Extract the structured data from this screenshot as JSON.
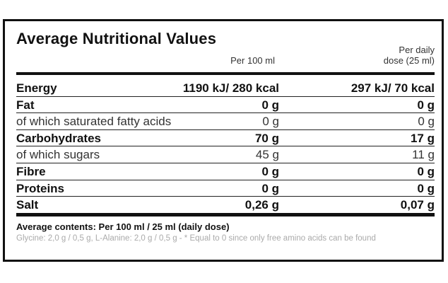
{
  "title": "Average Nutritional Values",
  "columns": {
    "per_100": "Per 100 ml",
    "per_dose_line1": "Per daily",
    "per_dose_line2": "dose (25 ml)"
  },
  "rows": [
    {
      "label": "Energy",
      "per_100": "1190 kJ/ 280 kcal",
      "per_dose": "297 kJ/ 70 kcal"
    },
    {
      "label": "Fat",
      "per_100": "0 g",
      "per_dose": "0 g"
    },
    {
      "label": "of which saturated fatty acids",
      "per_100": "0 g",
      "per_dose": "0 g"
    },
    {
      "label": "Carbohydrates",
      "per_100": "70 g",
      "per_dose": "17 g"
    },
    {
      "label": "of which sugars",
      "per_100": "45 g",
      "per_dose": "11 g"
    },
    {
      "label": "Fibre",
      "per_100": "0 g",
      "per_dose": "0 g"
    },
    {
      "label": "Proteins",
      "per_100": "0 g",
      "per_dose": "0 g"
    },
    {
      "label": "Salt",
      "per_100": "0,26 g",
      "per_dose": "0,07 g"
    }
  ],
  "average_contents": "Average contents: Per 100 ml / 25 ml (daily dose)",
  "footnote": "Glycine: 2,0 g / 0,5 g, L-Alanine: 2,0 g / 0,5 g - * Equal to 0 since only free amino acids can be found"
}
